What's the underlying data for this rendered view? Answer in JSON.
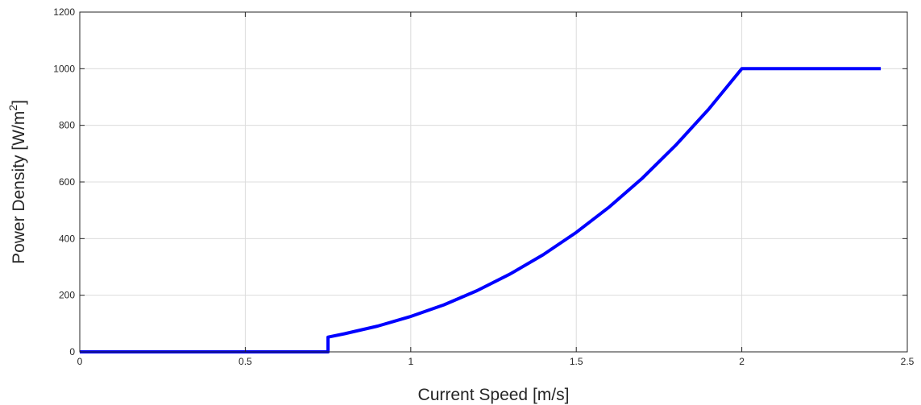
{
  "chart_data": {
    "type": "line",
    "title": "",
    "xlabel": "Current Speed [m/s]",
    "ylabel_main": "Power Density [W/m",
    "ylabel_sup": "2",
    "ylabel_end": "]",
    "xlim": [
      0,
      2.5
    ],
    "ylim": [
      0,
      1200
    ],
    "xticks": [
      0,
      0.5,
      1,
      1.5,
      2,
      2.5
    ],
    "xtick_labels": [
      "0",
      "0.5",
      "1",
      "1.5",
      "2",
      "2.5"
    ],
    "yticks": [
      0,
      200,
      400,
      600,
      800,
      1000,
      1200
    ],
    "ytick_labels": [
      "0",
      "200",
      "400",
      "600",
      "800",
      "1000",
      "1200"
    ],
    "grid": true,
    "series": [
      {
        "color": "#0000ff",
        "x": [
          0,
          0.75,
          0.75,
          0.8,
          0.9,
          1.0,
          1.1,
          1.2,
          1.3,
          1.4,
          1.5,
          1.6,
          1.7,
          1.8,
          1.9,
          2.0,
          2.0,
          2.42
        ],
        "y": [
          0,
          0,
          52,
          64,
          91,
          125,
          166,
          216,
          275,
          343,
          422,
          512,
          614,
          729,
          857,
          1000,
          1000,
          1000
        ]
      }
    ]
  }
}
